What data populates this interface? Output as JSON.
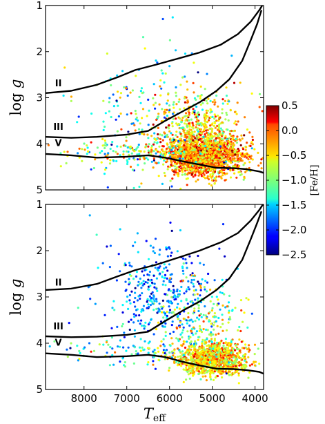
{
  "chart_data": {
    "type": "scatter",
    "shared_x": {
      "xlabel_main": "T",
      "xlabel_sub": "eff",
      "xlim": [
        8900,
        3800
      ],
      "xticks": [
        8000,
        7000,
        6000,
        5000,
        4000
      ],
      "xtick_labels": [
        "8000",
        "7000",
        "6000",
        "5000",
        "4000"
      ]
    },
    "colorbar": {
      "label": "[Fe/H]",
      "range": [
        -2.5,
        0.5
      ],
      "ticks": [
        0.5,
        0.0,
        -0.5,
        -1.0,
        -1.5,
        -2.0,
        -2.5
      ],
      "tick_labels": [
        "0.5",
        "0.0",
        "−0.5",
        "−1.0",
        "−1.5",
        "−2.0",
        "−2.5"
      ],
      "colormap": "jet"
    },
    "panels": [
      {
        "ylabel_main": "log",
        "ylabel_var": "g",
        "ylim": [
          1,
          5
        ],
        "yticks": [
          1,
          2,
          3,
          4,
          5
        ],
        "ytick_labels": [
          "1",
          "2",
          "3",
          "4",
          "5"
        ],
        "sequence_labels": [
          {
            "text": "II",
            "teff": 8600,
            "logg": 2.75
          },
          {
            "text": "III",
            "teff": 8600,
            "logg": 3.7
          },
          {
            "text": "V",
            "teff": 8600,
            "logg": 4.05
          }
        ],
        "boundary_lines": [
          {
            "x": [
              8900,
              8300,
              7700,
              7200,
              6800,
              6300,
              5800,
              5300,
              4800,
              4400,
              4100,
              3900,
              3800
            ],
            "y": [
              2.9,
              2.85,
              2.72,
              2.55,
              2.4,
              2.28,
              2.15,
              2.02,
              1.85,
              1.62,
              1.35,
              1.1,
              0.95
            ]
          },
          {
            "x": [
              8900,
              8300,
              7700,
              7000,
              6500,
              6100,
              5700,
              5300,
              4900,
              4600,
              4300,
              4100,
              3950,
              3850
            ],
            "y": [
              3.85,
              3.87,
              3.85,
              3.8,
              3.72,
              3.5,
              3.3,
              3.1,
              2.85,
              2.6,
              2.2,
              1.75,
              1.4,
              1.1
            ]
          },
          {
            "x": [
              8900,
              8300,
              7700,
              7000,
              6500,
              6100,
              5700,
              5300,
              4900,
              4500,
              4200,
              3900,
              3800
            ],
            "y": [
              4.22,
              4.25,
              4.3,
              4.28,
              4.25,
              4.3,
              4.38,
              4.45,
              4.52,
              4.53,
              4.55,
              4.6,
              4.63
            ]
          }
        ],
        "clusters": [
          {
            "teff_mean": 5200,
            "teff_sd": 450,
            "logg_mean": 4.25,
            "logg_sd": 0.22,
            "feh_mean": -0.35,
            "feh_sd": 0.35,
            "count": 1800
          },
          {
            "teff_mean": 5400,
            "teff_sd": 550,
            "logg_mean": 3.6,
            "logg_sd": 0.35,
            "feh_mean": -0.6,
            "feh_sd": 0.4,
            "count": 400
          },
          {
            "teff_mean": 6300,
            "teff_sd": 900,
            "logg_mean": 3.5,
            "logg_sd": 0.8,
            "feh_mean": -1.2,
            "feh_sd": 0.6,
            "count": 220
          },
          {
            "teff_mean": 7000,
            "teff_sd": 800,
            "logg_mean": 4.2,
            "logg_sd": 0.12,
            "feh_mean": -0.9,
            "feh_sd": 0.5,
            "count": 120
          }
        ]
      },
      {
        "ylabel_main": "log",
        "ylabel_var": "g",
        "ylim": [
          1,
          5
        ],
        "yticks": [
          1,
          2,
          3,
          4,
          5
        ],
        "ytick_labels": [
          "1",
          "2",
          "3",
          "4",
          "5"
        ],
        "sequence_labels": [
          {
            "text": "II",
            "teff": 8600,
            "logg": 2.75
          },
          {
            "text": "III",
            "teff": 8600,
            "logg": 3.7
          },
          {
            "text": "V",
            "teff": 8600,
            "logg": 4.05
          }
        ],
        "boundary_lines": [
          {
            "x": [
              8900,
              8300,
              7700,
              7200,
              6800,
              6300,
              5800,
              5300,
              4800,
              4400,
              4100,
              3900,
              3800
            ],
            "y": [
              2.85,
              2.82,
              2.72,
              2.55,
              2.42,
              2.3,
              2.15,
              2.0,
              1.82,
              1.62,
              1.35,
              1.12,
              0.98
            ]
          },
          {
            "x": [
              8900,
              8300,
              7700,
              7000,
              6500,
              6100,
              5700,
              5300,
              4900,
              4600,
              4300,
              4100,
              3950,
              3850
            ],
            "y": [
              3.85,
              3.87,
              3.86,
              3.82,
              3.75,
              3.52,
              3.3,
              3.1,
              2.85,
              2.6,
              2.2,
              1.75,
              1.4,
              1.15
            ]
          },
          {
            "x": [
              8900,
              8300,
              7700,
              7000,
              6500,
              6100,
              5700,
              5300,
              4900,
              4500,
              4200,
              3900,
              3800
            ],
            "y": [
              4.22,
              4.25,
              4.3,
              4.28,
              4.25,
              4.3,
              4.4,
              4.48,
              4.55,
              4.56,
              4.58,
              4.62,
              4.66
            ]
          }
        ],
        "clusters": [
          {
            "teff_mean": 5000,
            "teff_sd": 420,
            "logg_mean": 4.35,
            "logg_sd": 0.18,
            "feh_mean": -0.55,
            "feh_sd": 0.3,
            "count": 1100
          },
          {
            "teff_mean": 6200,
            "teff_sd": 650,
            "logg_mean": 2.9,
            "logg_sd": 0.55,
            "feh_mean": -1.75,
            "feh_sd": 0.35,
            "count": 380
          },
          {
            "teff_mean": 5200,
            "teff_sd": 500,
            "logg_mean": 3.5,
            "logg_sd": 0.4,
            "feh_mean": -0.9,
            "feh_sd": 0.45,
            "count": 220
          },
          {
            "teff_mean": 7000,
            "teff_sd": 800,
            "logg_mean": 4.2,
            "logg_sd": 0.15,
            "feh_mean": -1.2,
            "feh_sd": 0.5,
            "count": 90
          }
        ]
      }
    ]
  }
}
